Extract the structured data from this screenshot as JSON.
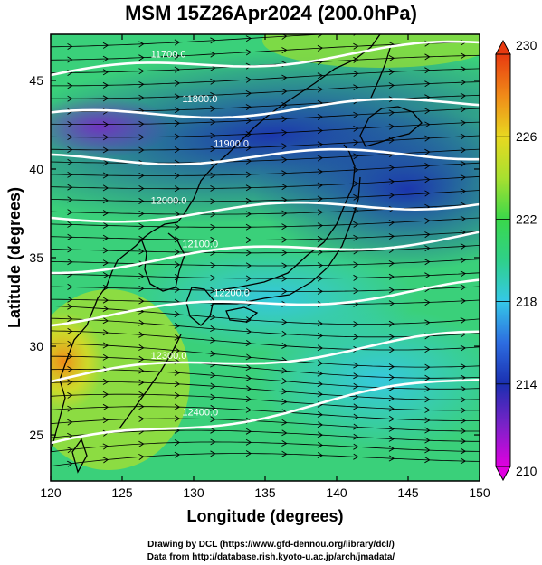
{
  "title": "MSM 15Z26Apr2024 (200.0hPa)",
  "x_axis": {
    "label": "Longitude (degrees)",
    "min": 120,
    "max": 150,
    "ticks": [
      120,
      125,
      130,
      135,
      140,
      145,
      150
    ]
  },
  "y_axis": {
    "label": "Latitude  (degrees)",
    "min": 22.4,
    "max": 47.6,
    "ticks": [
      25,
      30,
      35,
      40,
      45
    ]
  },
  "colorbar": {
    "min": 210,
    "max": 230,
    "ticks": [
      210,
      214,
      218,
      222,
      226,
      230
    ],
    "stops": [
      "#e000e0",
      "#7b22c8",
      "#1a2fb0",
      "#2d6de0",
      "#35c8e8",
      "#2fd08a",
      "#3ad84a",
      "#a8e030",
      "#e8d820",
      "#f08a18",
      "#e83a10"
    ]
  },
  "contours": [
    {
      "label": "11700.0",
      "lat_w": 45.3,
      "lat_e": 47.0
    },
    {
      "label": "11800.0",
      "lat_w": 42.9,
      "lat_e": 43.8
    },
    {
      "label": "11900.0",
      "lat_w": 40.5,
      "lat_e": 40.9
    },
    {
      "label": "12000.0",
      "lat_w": 37.2,
      "lat_e": 38.2
    },
    {
      "label": "12100.0",
      "lat_w": 34.4,
      "lat_e": 36.3
    },
    {
      "label": "12200.0",
      "lat_w": 31.5,
      "lat_e": 33.4
    },
    {
      "label": "12300.0",
      "lat_w": 28.1,
      "lat_e": 30.6
    },
    {
      "label": "12400.0",
      "lat_w": 24.3,
      "lat_e": 28.2
    }
  ],
  "field_points": [
    {
      "lon": 120.5,
      "lat": 30.5,
      "temp": 228
    },
    {
      "lon": 122.5,
      "lat": 43,
      "temp": 213
    },
    {
      "lon": 128,
      "lat": 42.5,
      "temp": 214
    },
    {
      "lon": 135,
      "lat": 42,
      "temp": 215
    },
    {
      "lon": 145,
      "lat": 40,
      "temp": 214
    },
    {
      "lon": 140,
      "lat": 36,
      "temp": 215
    },
    {
      "lon": 130,
      "lat": 38,
      "temp": 219
    },
    {
      "lon": 147,
      "lat": 46,
      "temp": 221
    },
    {
      "lon": 125,
      "lat": 28,
      "temp": 223
    },
    {
      "lon": 135,
      "lat": 30,
      "temp": 219
    },
    {
      "lon": 145,
      "lat": 30,
      "temp": 217
    },
    {
      "lon": 140,
      "lat": 25,
      "temp": 219
    },
    {
      "lon": 130,
      "lat": 24,
      "temp": 220
    }
  ],
  "footer": {
    "line1": "Drawing by DCL (https://www.gfd-dennou.org/library/dcl/)",
    "line2": "Data from http://database.rish.kyoto-u.ac.jp/arch/jmadata/"
  }
}
